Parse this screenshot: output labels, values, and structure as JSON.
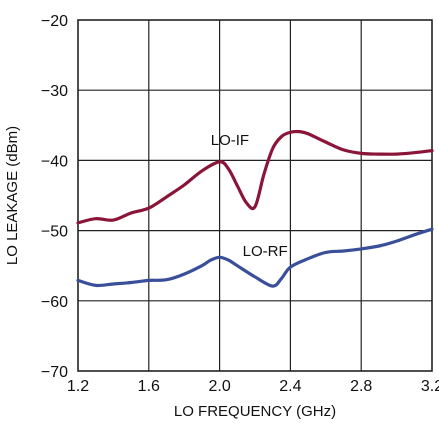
{
  "chart_data": {
    "type": "line",
    "xlabel": "LO FREQUENCY (GHz)",
    "ylabel": "LO LEAKAGE (dBm)",
    "xlim": [
      1.2,
      3.2
    ],
    "ylim": [
      -70,
      -20
    ],
    "x_ticks": [
      "1.2",
      "1.6",
      "2.0",
      "2.4",
      "2.8",
      "3.2"
    ],
    "y_ticks": [
      "−20",
      "−30",
      "−40",
      "−50",
      "−60",
      "−70"
    ],
    "grid": true,
    "series": [
      {
        "name": "LO-IF",
        "color": "#8a1538",
        "x": [
          1.2,
          1.3,
          1.4,
          1.5,
          1.6,
          1.7,
          1.8,
          1.9,
          2.0,
          2.05,
          2.1,
          2.15,
          2.2,
          2.25,
          2.3,
          2.35,
          2.4,
          2.45,
          2.5,
          2.6,
          2.7,
          2.8,
          2.9,
          3.0,
          3.1,
          3.2
        ],
        "values": [
          -48.9,
          -48.3,
          -48.5,
          -47.5,
          -46.8,
          -45.2,
          -43.5,
          -41.5,
          -40.2,
          -41.2,
          -43.6,
          -46.0,
          -46.6,
          -42.0,
          -38.3,
          -36.6,
          -36.0,
          -35.9,
          -36.2,
          -37.4,
          -38.5,
          -39.0,
          -39.1,
          -39.1,
          -38.9,
          -38.6
        ]
      },
      {
        "name": "LO-RF",
        "color": "#3a4f99",
        "x": [
          1.2,
          1.3,
          1.4,
          1.5,
          1.6,
          1.7,
          1.8,
          1.9,
          1.95,
          2.0,
          2.05,
          2.1,
          2.2,
          2.3,
          2.35,
          2.4,
          2.5,
          2.6,
          2.7,
          2.8,
          2.9,
          3.0,
          3.1,
          3.2
        ],
        "values": [
          -57.1,
          -57.8,
          -57.6,
          -57.4,
          -57.1,
          -57.0,
          -56.2,
          -55.0,
          -54.2,
          -53.8,
          -54.2,
          -55.0,
          -56.6,
          -57.9,
          -56.8,
          -55.2,
          -54.0,
          -53.1,
          -52.9,
          -52.6,
          -52.2,
          -51.5,
          -50.6,
          -49.8
        ]
      }
    ],
    "annotations": [
      {
        "text": "LO-IF",
        "x": 1.95,
        "y": -37.8
      },
      {
        "text": "LO-RF",
        "x": 2.13,
        "y": -53.6
      }
    ]
  }
}
